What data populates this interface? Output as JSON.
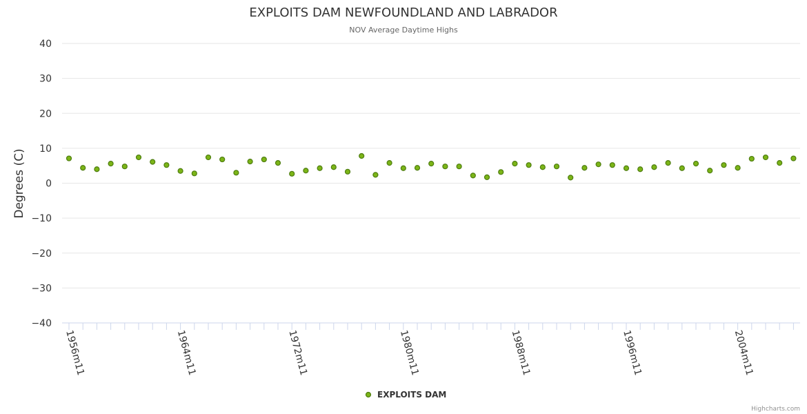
{
  "chart_data": {
    "type": "scatter",
    "title": "EXPLOITS DAM NEWFOUNDLAND AND LABRADOR",
    "subtitle": "NOV Average Daytime Highs",
    "xlabel": "",
    "ylabel": "Degrees (C)",
    "ylim": [
      -40,
      40
    ],
    "yticks": [
      40,
      30,
      20,
      10,
      0,
      -10,
      -20,
      -30,
      -40
    ],
    "ytick_labels": [
      "40",
      "30",
      "20",
      "10",
      "0",
      "−10",
      "−20",
      "−30",
      "−40"
    ],
    "categories": [
      "1956m11",
      "1957m11",
      "1958m11",
      "1959m11",
      "1960m11",
      "1961m11",
      "1962m11",
      "1963m11",
      "1964m11",
      "1965m11",
      "1966m11",
      "1967m11",
      "1968m11",
      "1969m11",
      "1970m11",
      "1971m11",
      "1972m11",
      "1973m11",
      "1974m11",
      "1975m11",
      "1976m11",
      "1977m11",
      "1978m11",
      "1979m11",
      "1980m11",
      "1981m11",
      "1982m11",
      "1983m11",
      "1984m11",
      "1985m11",
      "1986m11",
      "1987m11",
      "1988m11",
      "1989m11",
      "1990m11",
      "1991m11",
      "1992m11",
      "1993m11",
      "1994m11",
      "1995m11",
      "1996m11",
      "1997m11",
      "1998m11",
      "1999m11",
      "2000m11",
      "2001m11",
      "2002m11",
      "2003m11",
      "2004m11",
      "2005m11",
      "2006m11",
      "2007m11",
      "2008m11"
    ],
    "xtick_labels": [
      "1956m11",
      "1964m11",
      "1972m11",
      "1980m11",
      "1988m11",
      "1996m11",
      "2004m11"
    ],
    "series": [
      {
        "name": "EXPLOITS DAM",
        "color": "#7cb518",
        "edge_color": "#4d7c0f",
        "values": [
          7.1,
          4.4,
          4.0,
          5.6,
          4.8,
          7.4,
          6.1,
          5.2,
          3.5,
          2.8,
          7.4,
          6.8,
          3.0,
          6.2,
          6.8,
          5.8,
          2.7,
          3.6,
          4.3,
          4.6,
          3.3,
          7.8,
          2.4,
          5.8,
          4.3,
          4.4,
          5.6,
          4.8,
          4.8,
          2.2,
          1.7,
          3.2,
          5.6,
          5.2,
          4.6,
          4.8,
          1.6,
          4.4,
          5.4,
          5.2,
          4.3,
          4.0,
          4.6,
          5.8,
          4.3,
          5.6,
          3.6,
          5.2,
          4.4,
          7.0,
          7.4,
          5.8,
          7.1
        ]
      }
    ],
    "legend": {
      "label": "EXPLOITS DAM",
      "position": "bottom-center"
    },
    "credits": "Highcharts.com"
  }
}
